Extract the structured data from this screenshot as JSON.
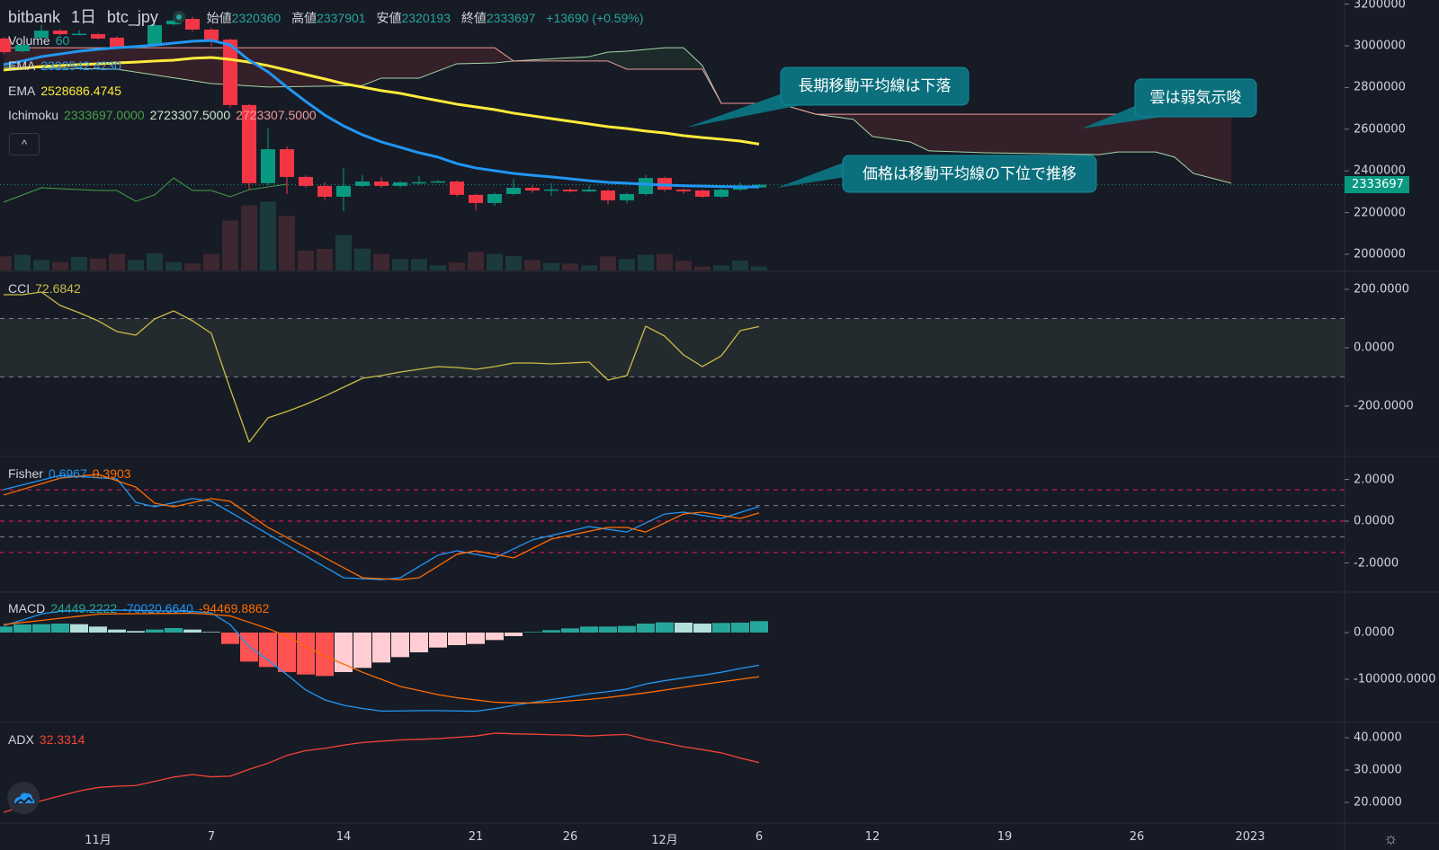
{
  "header": {
    "exchange": "bitbank",
    "interval": "1日",
    "symbol": "btc_jpy",
    "open_label": "始値",
    "open": "2320360",
    "high_label": "高値",
    "high": "2337901",
    "low_label": "安値",
    "low": "2320193",
    "close_label": "終値",
    "close": "2333697",
    "change": "+13690 (+0.59%)"
  },
  "legends": {
    "volume": {
      "name": "Volume",
      "value": "60"
    },
    "ema_short": {
      "name": "EMA",
      "value": "2322542.4230"
    },
    "ema_long": {
      "name": "EMA",
      "value": "2528686.4745"
    },
    "ichimoku": {
      "name": "Ichimoku",
      "v1": "2333697.0000",
      "v2": "2723307.5000",
      "v3": "2723307.5000"
    },
    "cci": {
      "name": "CCI",
      "value": "72.6842"
    },
    "fisher": {
      "name": "Fisher",
      "v1": "0.6967",
      "v2": "0.3903"
    },
    "macd": {
      "name": "MACD",
      "v1": "24449.2222",
      "v2": "-70020.6640",
      "v3": "-94469.8862"
    },
    "adx": {
      "name": "ADX",
      "value": "32.3314"
    }
  },
  "collapse_button": "^",
  "callouts": [
    "長期移動平均線は下落",
    "雲は弱気示唆",
    "価格は移動平均線の下位で推移"
  ],
  "colors": {
    "background": "#171b26",
    "up": "#089981",
    "down": "#f23645",
    "ema_short": "#2196f3",
    "ema_long": "#ffeb3b",
    "cci": "#c9bd45",
    "fisher": "#2196f3",
    "fisher_signal": "#ff6d00",
    "adx": "#f44336",
    "callout": "#0b6f7d"
  },
  "icons": {
    "logo": "tradingview-cloud-icon",
    "settings": "gear-icon",
    "status": "market-open-dot-icon"
  },
  "chart_data": [
    {
      "type": "candlestick",
      "pane": "price",
      "start_date": "2022-10-27",
      "y_ticks": [
        "3200000",
        "3000000",
        "2800000",
        "2600000",
        "2400000",
        "2200000",
        "2000000"
      ],
      "x_ticks": [
        {
          "label": "11月",
          "date": "2022-11-01"
        },
        {
          "label": "7",
          "date": "2022-11-07"
        },
        {
          "label": "14",
          "date": "2022-11-14"
        },
        {
          "label": "21",
          "date": "2022-11-21"
        },
        {
          "label": "26",
          "date": "2022-11-26"
        },
        {
          "label": "12月",
          "date": "2022-12-01"
        },
        {
          "label": "6",
          "date": "2022-12-06"
        },
        {
          "label": "12",
          "date": "2022-12-12"
        },
        {
          "label": "19",
          "date": "2022-12-19"
        },
        {
          "label": "26",
          "date": "2022-12-26"
        },
        {
          "label": "2023",
          "date": "2023-01-01"
        }
      ],
      "last_price": "2333697",
      "ohlc": [
        [
          3035000,
          3042000,
          2962000,
          2970000
        ],
        [
          2974000,
          3010000,
          2968000,
          3004000
        ],
        [
          3039000,
          3100000,
          3030000,
          3073000
        ],
        [
          3073000,
          3080000,
          3050000,
          3056000
        ],
        [
          3056000,
          3075000,
          3050000,
          3058000
        ],
        [
          3056000,
          3062000,
          3030000,
          3035000
        ],
        [
          3039000,
          3045000,
          2985000,
          2991000
        ],
        [
          2991000,
          3005000,
          2985000,
          3000000
        ],
        [
          3000000,
          3105000,
          2995000,
          3099000
        ],
        [
          3103000,
          3130000,
          3098000,
          3121000
        ],
        [
          3129000,
          3140000,
          3070000,
          3078000
        ],
        [
          3078000,
          3085000,
          3000000,
          3026000
        ],
        [
          3030000,
          3035000,
          2700000,
          2716000
        ],
        [
          2716000,
          2720000,
          2310000,
          2341000
        ],
        [
          2341000,
          2604000,
          2330000,
          2504000
        ],
        [
          2504000,
          2517000,
          2290000,
          2371000
        ],
        [
          2371000,
          2378000,
          2320000,
          2328000
        ],
        [
          2328000,
          2345000,
          2262000,
          2276000
        ],
        [
          2276000,
          2414000,
          2207000,
          2328000
        ],
        [
          2328000,
          2380000,
          2322000,
          2349000
        ],
        [
          2349000,
          2370000,
          2320000,
          2328000
        ],
        [
          2328000,
          2352000,
          2320000,
          2345000
        ],
        [
          2345000,
          2375000,
          2335000,
          2346000
        ],
        [
          2349000,
          2356000,
          2342000,
          2350000
        ],
        [
          2349000,
          2355000,
          2278000,
          2285000
        ],
        [
          2285000,
          2290000,
          2211000,
          2246000
        ],
        [
          2246000,
          2296000,
          2232000,
          2289000
        ],
        [
          2289000,
          2362000,
          2282000,
          2319000
        ],
        [
          2319000,
          2330000,
          2295000,
          2306000
        ],
        [
          2310000,
          2340000,
          2280000,
          2311000
        ],
        [
          2310000,
          2316000,
          2296000,
          2302000
        ],
        [
          2302000,
          2330000,
          2296000,
          2310000
        ],
        [
          2306000,
          2312000,
          2240000,
          2259000
        ],
        [
          2259000,
          2295000,
          2245000,
          2289000
        ],
        [
          2289000,
          2380000,
          2282000,
          2366000
        ],
        [
          2366000,
          2372000,
          2300000,
          2310000
        ],
        [
          2310000,
          2315000,
          2290000,
          2302000
        ],
        [
          2306000,
          2312000,
          2270000,
          2276000
        ],
        [
          2276000,
          2316000,
          2270000,
          2310000
        ],
        [
          2310000,
          2345000,
          2304000,
          2323000
        ],
        [
          2320360,
          2337901,
          2320193,
          2333697
        ]
      ],
      "volume_relative": [
        47,
        52,
        35,
        28,
        45,
        40,
        55,
        35,
        57,
        28,
        23,
        55,
        167,
        217,
        230,
        182,
        67,
        72,
        118,
        73,
        55,
        38,
        38,
        17,
        27,
        62,
        55,
        48,
        35,
        25,
        23,
        17,
        47,
        38,
        52,
        55,
        32,
        13,
        17,
        33,
        13
      ],
      "ema_short": [
        2910000,
        2927000,
        2948000,
        2961000,
        2974000,
        2983000,
        2991000,
        2996000,
        3004000,
        3013000,
        3022000,
        3026000,
        3004000,
        2931000,
        2875000,
        2802000,
        2733000,
        2668000,
        2616000,
        2573000,
        2539000,
        2513000,
        2487000,
        2466000,
        2435000,
        2414000,
        2401000,
        2388000,
        2379000,
        2371000,
        2362000,
        2353000,
        2345000,
        2341000,
        2336000,
        2332000,
        2329000,
        2327000,
        2325000,
        2324000,
        2322542
      ],
      "ema_long": [
        2884000,
        2892000,
        2901000,
        2905000,
        2910000,
        2914000,
        2918000,
        2922000,
        2927000,
        2931000,
        2940000,
        2944000,
        2935000,
        2922000,
        2905000,
        2884000,
        2862000,
        2841000,
        2819000,
        2802000,
        2785000,
        2772000,
        2754000,
        2737000,
        2720000,
        2707000,
        2694000,
        2677000,
        2664000,
        2651000,
        2638000,
        2625000,
        2612000,
        2603000,
        2591000,
        2582000,
        2569000,
        2560000,
        2552000,
        2543000,
        2528686
      ],
      "ichimoku_span_b": [
        [
          "2022-10-27",
          2991000
        ],
        [
          "2022-11-22",
          2991000
        ],
        [
          "2022-11-23",
          2927000
        ],
        [
          "2022-11-28",
          2927000
        ],
        [
          "2022-11-29",
          2888000
        ],
        [
          "2022-12-03",
          2888000
        ],
        [
          "2022-12-04",
          2724000
        ],
        [
          "2022-12-07",
          2724000
        ],
        [
          "2022-12-09",
          2672000
        ],
        [
          "2022-12-31",
          2672000
        ]
      ],
      "ichimoku_span_a": [
        [
          "2022-10-27",
          2897000
        ],
        [
          "2022-11-02",
          2888000
        ],
        [
          "2022-11-07",
          2819000
        ],
        [
          "2022-11-10",
          2802000
        ],
        [
          "2022-11-15",
          2810000
        ],
        [
          "2022-11-16",
          2845000
        ],
        [
          "2022-11-18",
          2845000
        ],
        [
          "2022-11-20",
          2914000
        ],
        [
          "2022-11-22",
          2918000
        ],
        [
          "2022-11-23",
          2927000
        ],
        [
          "2022-11-27",
          2948000
        ],
        [
          "2022-11-28",
          2970000
        ],
        [
          "2022-11-29",
          2974000
        ],
        [
          "2022-12-01",
          2991000
        ],
        [
          "2022-12-02",
          2991000
        ],
        [
          "2022-12-03",
          2905000
        ],
        [
          "2022-12-04",
          2724000
        ],
        [
          "2022-12-07",
          2724000
        ],
        [
          "2022-12-09",
          2672000
        ],
        [
          "2022-12-11",
          2647000
        ],
        [
          "2022-12-12",
          2565000
        ],
        [
          "2022-12-14",
          2539000
        ],
        [
          "2022-12-15",
          2496000
        ],
        [
          "2022-12-18",
          2487000
        ],
        [
          "2022-12-24",
          2478000
        ],
        [
          "2022-12-25",
          2491000
        ],
        [
          "2022-12-27",
          2491000
        ],
        [
          "2022-12-28",
          2466000
        ],
        [
          "2022-12-29",
          2388000
        ],
        [
          "2022-12-31",
          2341000
        ]
      ],
      "ichimoku_lagging": [
        [
          "2022-10-27",
          2250000
        ],
        [
          "2022-10-29",
          2319000
        ],
        [
          "2022-11-01",
          2306000
        ],
        [
          "2022-11-02",
          2306000
        ],
        [
          "2022-11-03",
          2254000
        ],
        [
          "2022-11-04",
          2285000
        ],
        [
          "2022-11-05",
          2366000
        ],
        [
          "2022-11-06",
          2306000
        ],
        [
          "2022-11-07",
          2306000
        ],
        [
          "2022-11-08",
          2276000
        ],
        [
          "2022-11-09",
          2310000
        ],
        [
          "2022-11-10",
          2323000
        ],
        [
          "2022-11-11",
          2336000
        ]
      ]
    },
    {
      "type": "line",
      "pane": "CCI",
      "y_ticks": [
        "200.0000",
        "0.0000",
        "-200.0000"
      ],
      "band": [
        -100,
        100
      ],
      "values": [
        181.5,
        181.5,
        190.8,
        144.6,
        120,
        92.3,
        55.4,
        43.1,
        98.5,
        126.2,
        92.3,
        49.2,
        -141.5,
        -323,
        -240,
        -218.5,
        -193.8,
        -166,
        -135.4,
        -104.6,
        -95.4,
        -83.1,
        -73.8,
        -64.6,
        -67.7,
        -73.8,
        -64.6,
        -52.3,
        -52.3,
        -55.4,
        -52.3,
        -49.2,
        -110.8,
        -95.4,
        73.8,
        40,
        -24.6,
        -64.6,
        -27.7,
        58.5,
        72.6842
      ]
    },
    {
      "type": "line",
      "pane": "Fisher",
      "y_ticks": [
        "2.0000",
        "0.0000",
        "-2.0000"
      ],
      "levels": [
        1.5,
        0.75,
        0,
        -0.75,
        -1.5
      ],
      "fisher": [
        [
          "2022-10-27",
          1.51
        ],
        [
          "2022-10-30",
          2.19
        ],
        [
          "2022-11-02",
          2.02
        ],
        [
          "2022-11-03",
          0.9
        ],
        [
          "2022-11-04",
          0.69
        ],
        [
          "2022-11-06",
          1.08
        ],
        [
          "2022-11-07",
          0.95
        ],
        [
          "2022-11-14",
          -2.71
        ],
        [
          "2022-11-16",
          -2.8
        ],
        [
          "2022-11-17",
          -2.71
        ],
        [
          "2022-11-19",
          -1.63
        ],
        [
          "2022-11-20",
          -1.42
        ],
        [
          "2022-11-22",
          -1.76
        ],
        [
          "2022-11-24",
          -0.9
        ],
        [
          "2022-11-27",
          -0.26
        ],
        [
          "2022-11-29",
          -0.52
        ],
        [
          "2022-12-01",
          0.34
        ],
        [
          "2022-12-02",
          0.43
        ],
        [
          "2022-12-04",
          0.13
        ],
        [
          "2022-12-06",
          0.6967
        ]
      ],
      "trigger": [
        [
          "2022-10-27",
          1.25
        ],
        [
          "2022-10-30",
          2.06
        ],
        [
          "2022-11-01",
          2.24
        ],
        [
          "2022-11-03",
          1.63
        ],
        [
          "2022-11-04",
          0.86
        ],
        [
          "2022-11-05",
          0.69
        ],
        [
          "2022-11-07",
          1.08
        ],
        [
          "2022-11-08",
          0.95
        ],
        [
          "2022-11-10",
          -0.3
        ],
        [
          "2022-11-15",
          -2.71
        ],
        [
          "2022-11-17",
          -2.8
        ],
        [
          "2022-11-18",
          -2.71
        ],
        [
          "2022-11-20",
          -1.59
        ],
        [
          "2022-11-21",
          -1.42
        ],
        [
          "2022-11-23",
          -1.76
        ],
        [
          "2022-11-25",
          -0.86
        ],
        [
          "2022-11-28",
          -0.3
        ],
        [
          "2022-11-29",
          -0.3
        ],
        [
          "2022-11-30",
          -0.52
        ],
        [
          "2022-12-02",
          0.34
        ],
        [
          "2022-12-03",
          0.43
        ],
        [
          "2022-12-05",
          0.13
        ],
        [
          "2022-12-06",
          0.3903
        ]
      ]
    },
    {
      "type": "bar+line",
      "pane": "MACD",
      "y_ticks": [
        "0.0000",
        "-100000.0000"
      ],
      "histogram": [
        12820,
        17300,
        17950,
        19230,
        17950,
        12820,
        6410,
        3200,
        6410,
        9620,
        6410,
        1280,
        -24360,
        -62180,
        -73720,
        -84610,
        -89740,
        -92950,
        -84610,
        -75640,
        -64100,
        -52560,
        -42310,
        -32050,
        -26920,
        -24360,
        -16030,
        -7690,
        1280,
        5130,
        8970,
        12820,
        12820,
        14100,
        19230,
        21790,
        21150,
        19230,
        20510,
        21150,
        24449
      ],
      "macd": [
        15000,
        27000,
        40000,
        45500,
        46500,
        47500,
        48000,
        47500,
        46700,
        45900,
        45100,
        42000,
        17000,
        -30000,
        -59000,
        -90000,
        -123000,
        -144000,
        -155500,
        -162500,
        -168000,
        -167800,
        -167000,
        -167000,
        -167800,
        -168400,
        -163000,
        -156000,
        -149500,
        -143500,
        -137500,
        -131000,
        -126500,
        -121000,
        -110000,
        -103000,
        -97000,
        -91500,
        -85000,
        -77000,
        -70020.664
      ],
      "signal": [
        17000,
        21500,
        26000,
        30500,
        35000,
        39500,
        40000,
        40300,
        40700,
        41000,
        41500,
        39000,
        35500,
        22000,
        8500,
        -8000,
        -30000,
        -50000,
        -67500,
        -85000,
        -100000,
        -115400,
        -124000,
        -133000,
        -139500,
        -144300,
        -149000,
        -150600,
        -150600,
        -149000,
        -146000,
        -143000,
        -139000,
        -134000,
        -129000,
        -123000,
        -117000,
        -111000,
        -105500,
        -100000,
        -94469.886
      ]
    },
    {
      "type": "line",
      "pane": "ADX",
      "y_ticks": [
        "40.0000",
        "30.0000",
        "20.0000"
      ],
      "values": [
        16.9,
        18.7,
        20.5,
        22,
        23.5,
        24.6,
        25,
        25.2,
        26.5,
        27.8,
        28.6,
        27.9,
        28.1,
        30.2,
        32.1,
        34.5,
        36,
        36.7,
        37.7,
        38.5,
        38.9,
        39.3,
        39.5,
        39.7,
        40.1,
        40.5,
        41.4,
        41.2,
        41.1,
        40.9,
        40.8,
        40.5,
        40.8,
        41,
        39.5,
        38.4,
        37.2,
        36.3,
        35.3,
        33.7,
        32.3314
      ]
    }
  ]
}
